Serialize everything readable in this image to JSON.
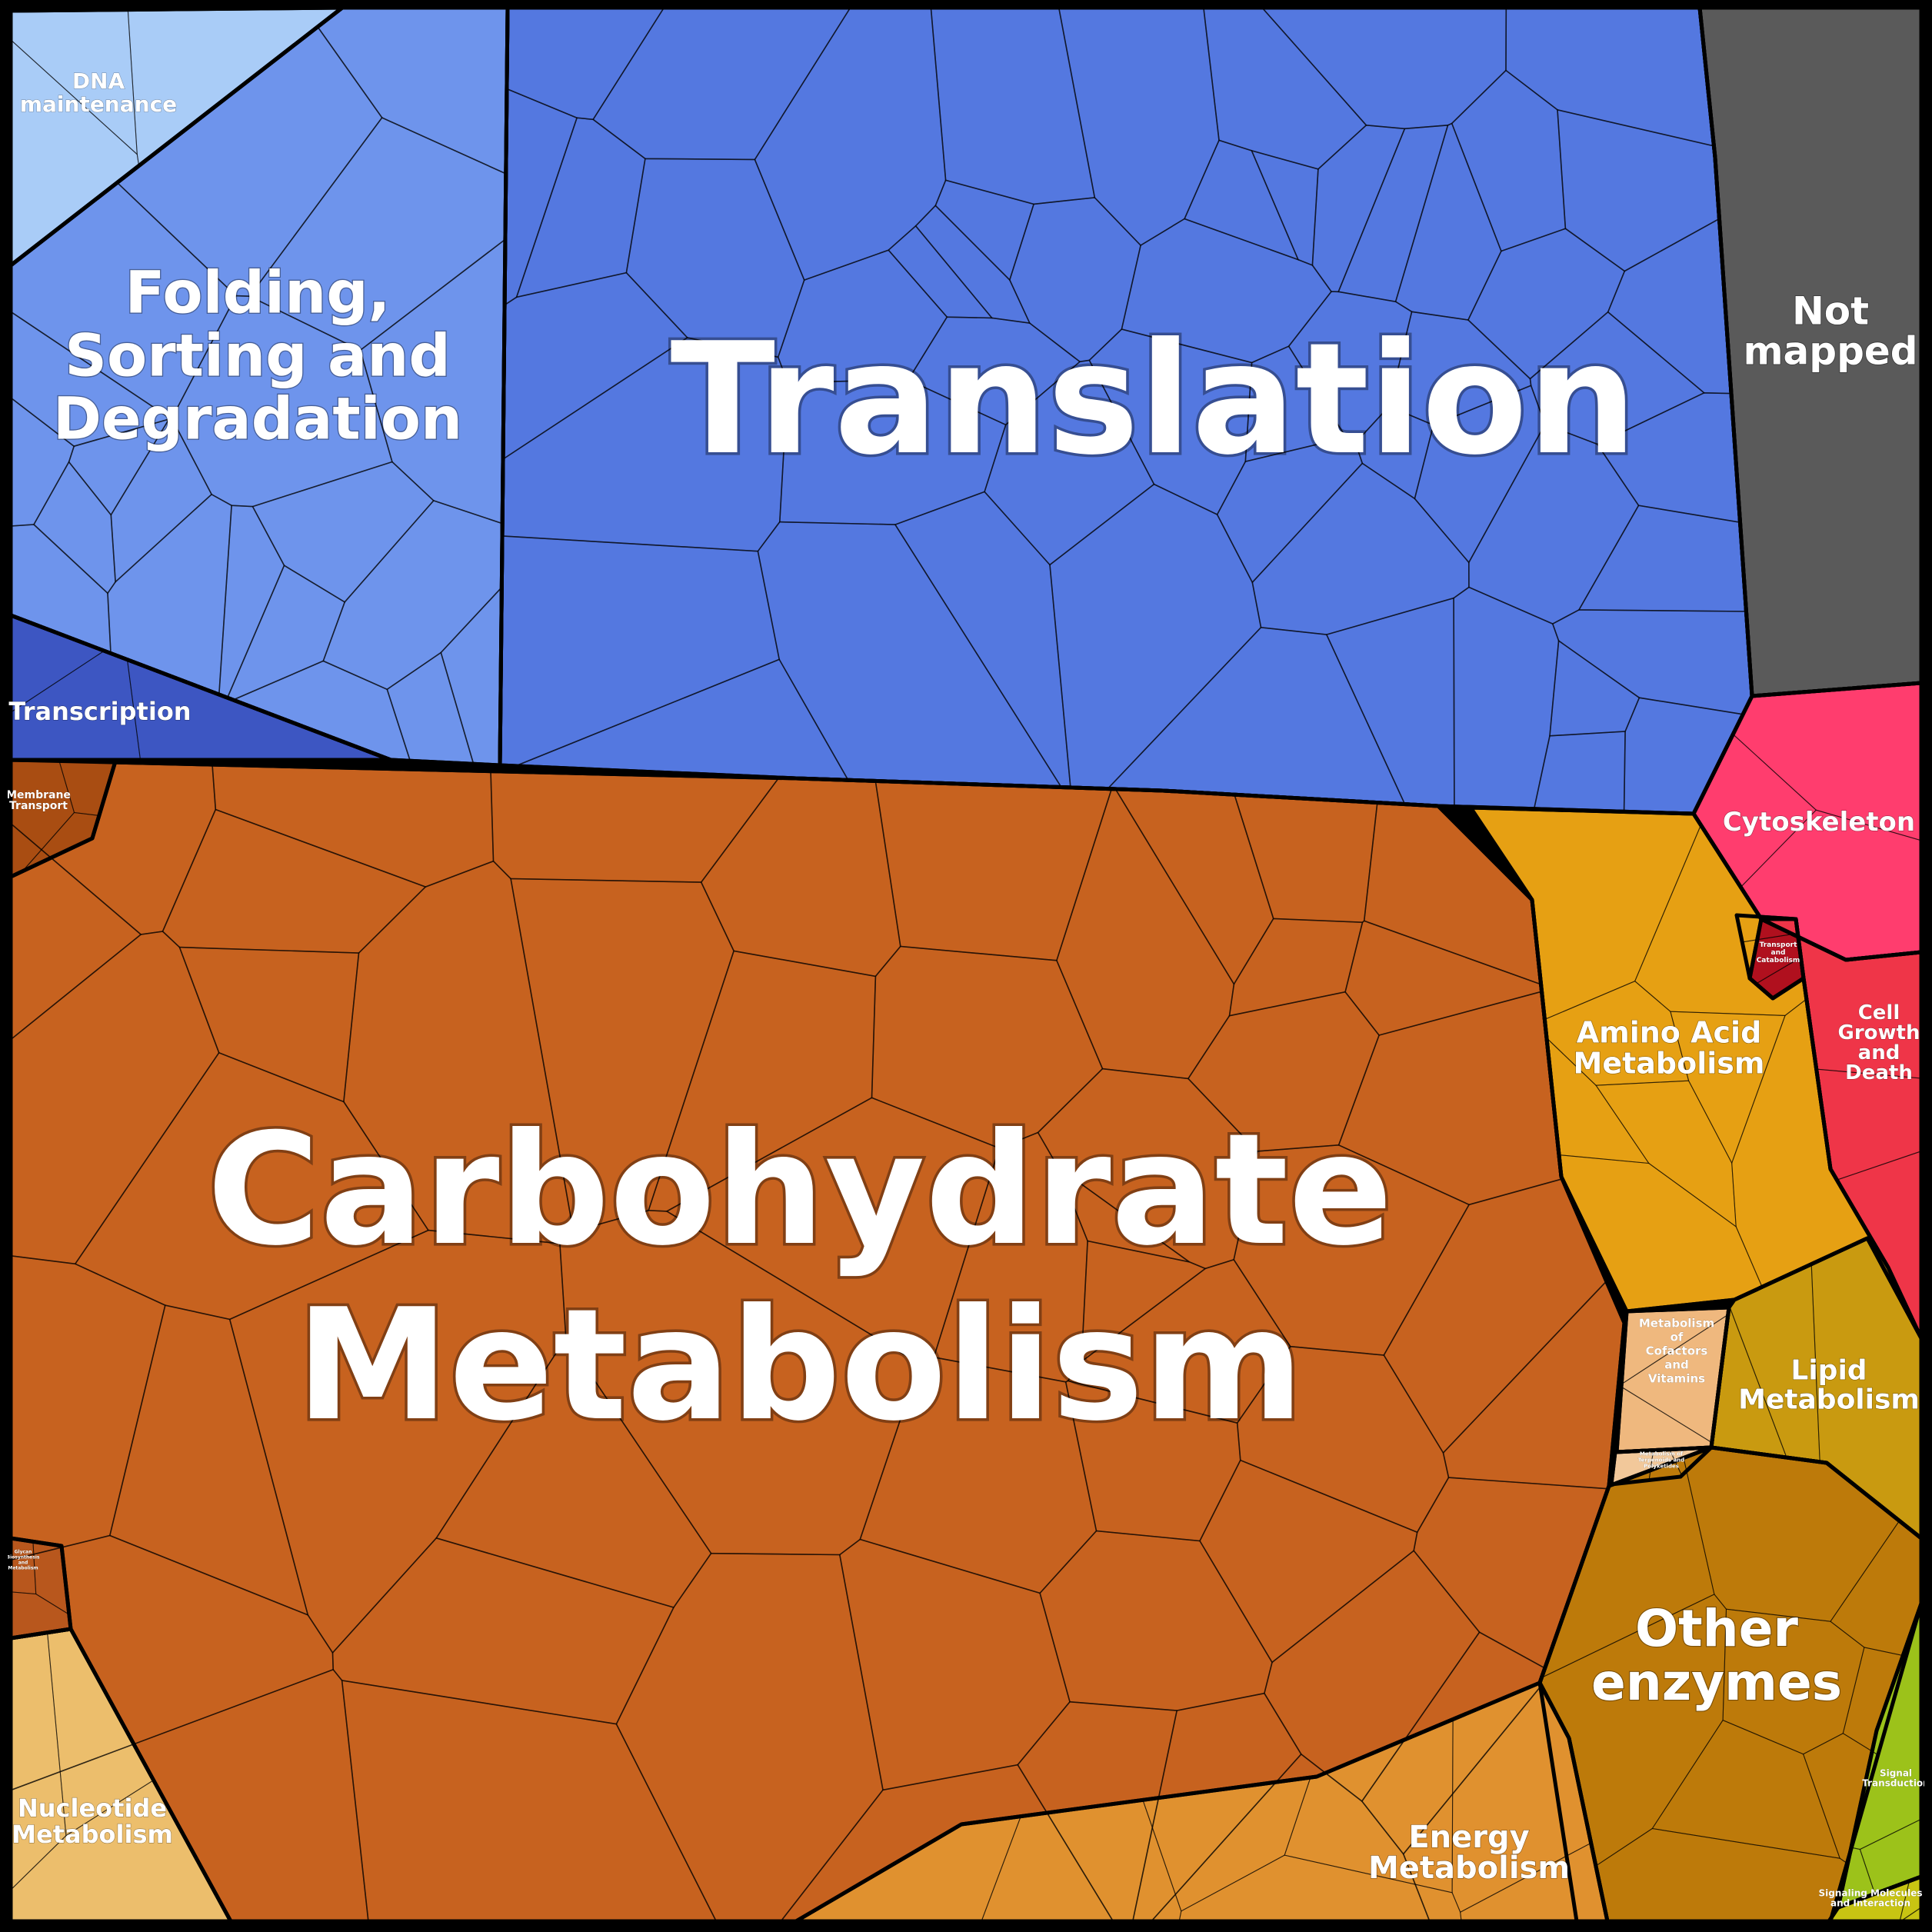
{
  "title": "",
  "categories": [
    {
      "id": "translation",
      "label": [
        "Translation"
      ],
      "color": "#5478e0"
    },
    {
      "id": "folding",
      "label": [
        "Folding,",
        "Sorting and",
        "Degradation"
      ],
      "color": "#6e94ec"
    },
    {
      "id": "dna",
      "label": [
        "DNA",
        "maintenance"
      ],
      "color": "#a9ccf7"
    },
    {
      "id": "transcription",
      "label": [
        "Transcription"
      ],
      "color": "#3d56c2"
    },
    {
      "id": "not-mapped",
      "label": [
        "Not",
        "mapped"
      ],
      "color": "#5a5a5a"
    },
    {
      "id": "cytoskeleton",
      "label": [
        "Cytoskeleton"
      ],
      "color": "#ff3d6e"
    },
    {
      "id": "transport-catabolism",
      "label": [
        "Transport",
        "and",
        "Catabolism"
      ],
      "color": "#b0101e"
    },
    {
      "id": "cell-growth",
      "label": [
        "Cell",
        "Growth",
        "and",
        "Death"
      ],
      "color": "#ef3548"
    },
    {
      "id": "carbohydrate",
      "label": [
        "Carbohydrate",
        "Metabolism"
      ],
      "color": "#c7621f"
    },
    {
      "id": "amino-acid",
      "label": [
        "Amino Acid",
        "Metabolism"
      ],
      "color": "#e6a013"
    },
    {
      "id": "lipid",
      "label": [
        "Lipid",
        "Metabolism"
      ],
      "color": "#c99a10"
    },
    {
      "id": "cofactors",
      "label": [
        "Metabolism",
        "of",
        "Cofactors",
        "and",
        "Vitamins"
      ],
      "color": "#efb87e"
    },
    {
      "id": "terpenoids",
      "label": [
        "Metabolism of",
        "Terpenoids and",
        "Polyketides"
      ],
      "color": "#f2c89a"
    },
    {
      "id": "other-enzymes",
      "label": [
        "Other",
        "enzymes"
      ],
      "color": "#bd7a0a"
    },
    {
      "id": "energy",
      "label": [
        "Energy",
        "Metabolism"
      ],
      "color": "#e0912f"
    },
    {
      "id": "nucleotide",
      "label": [
        "Nucleotide",
        "Metabolism"
      ],
      "color": "#ecbe6c"
    },
    {
      "id": "membrane-transport",
      "label": [
        "Membrane",
        "Transport"
      ],
      "color": "#a94d12"
    },
    {
      "id": "glycan",
      "label": [
        "Glycan",
        "Biosynthesis",
        "and",
        "Metabolism"
      ],
      "color": "#b8571d"
    },
    {
      "id": "signal-transduction",
      "label": [
        "Signal",
        "Transduction"
      ],
      "color": "#9cc21a"
    },
    {
      "id": "signaling-molecules",
      "label": [
        "Signaling Molecules",
        "and Interaction"
      ],
      "color": "#c8c412"
    }
  ]
}
